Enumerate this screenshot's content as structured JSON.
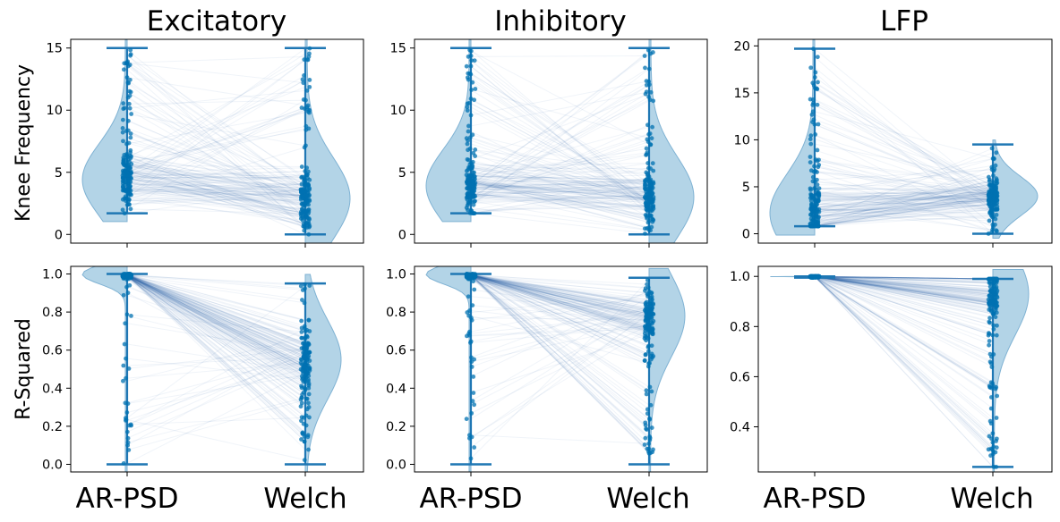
{
  "figure": {
    "columns": [
      "Excitatory",
      "Inhibitory",
      "LFP"
    ],
    "rows": [
      "Knee Frequency",
      "R-Squared"
    ],
    "categories": [
      "AR-PSD",
      "Welch"
    ],
    "colors": {
      "point": "#0072b2",
      "violin": "#a6cde3",
      "violin_edge": "#7fb2d3",
      "whisker": "#1f77b4",
      "line": "#2a5db0"
    }
  },
  "chart_data": [
    {
      "type": "violin",
      "column": "Excitatory",
      "ylabel": "Knee Frequency",
      "categories": [
        "AR-PSD",
        "Welch"
      ],
      "ylim": [
        -0.7,
        15.7
      ],
      "yticks": [
        0,
        5,
        10,
        15
      ],
      "series": [
        {
          "name": "AR-PSD",
          "min": 1.7,
          "max": 15.0,
          "median": 4.3,
          "density_peak": 4.4
        },
        {
          "name": "Welch",
          "min": 0.0,
          "max": 15.0,
          "median": 3.2,
          "density_peak": 2.9
        }
      ]
    },
    {
      "type": "violin",
      "column": "Inhibitory",
      "ylabel": "",
      "categories": [
        "AR-PSD",
        "Welch"
      ],
      "ylim": [
        -0.7,
        15.7
      ],
      "yticks": [
        0,
        5,
        10,
        15
      ],
      "series": [
        {
          "name": "AR-PSD",
          "min": 1.7,
          "max": 15.0,
          "median": 4.0,
          "density_peak": 3.9
        },
        {
          "name": "Welch",
          "min": 0.0,
          "max": 15.0,
          "median": 3.0,
          "density_peak": 3.0
        }
      ]
    },
    {
      "type": "violin",
      "column": "LFP",
      "ylabel": "",
      "categories": [
        "AR-PSD",
        "Welch"
      ],
      "ylim": [
        -1.0,
        20.7
      ],
      "yticks": [
        0,
        5,
        10,
        15,
        20
      ],
      "series": [
        {
          "name": "AR-PSD",
          "min": 0.8,
          "max": 19.7,
          "median": 2.5,
          "density_peak": 2.2
        },
        {
          "name": "Welch",
          "min": 0.0,
          "max": 9.5,
          "median": 3.8,
          "density_peak": 4.0
        }
      ]
    },
    {
      "type": "violin",
      "column": "Excitatory",
      "ylabel": "R-Squared",
      "categories": [
        "AR-PSD",
        "Welch"
      ],
      "ylim": [
        -0.04,
        1.04
      ],
      "yticks": [
        0.0,
        0.2,
        0.4,
        0.6,
        0.8,
        1.0
      ],
      "series": [
        {
          "name": "AR-PSD",
          "min": 0.0,
          "max": 1.0,
          "median": 0.997,
          "density_peak": 0.998
        },
        {
          "name": "Welch",
          "min": 0.0,
          "max": 0.95,
          "median": 0.45,
          "density_peak": 0.55
        }
      ]
    },
    {
      "type": "violin",
      "column": "Inhibitory",
      "ylabel": "",
      "categories": [
        "AR-PSD",
        "Welch"
      ],
      "ylim": [
        -0.04,
        1.04
      ],
      "yticks": [
        0.0,
        0.2,
        0.4,
        0.6,
        0.8,
        1.0
      ],
      "series": [
        {
          "name": "AR-PSD",
          "min": 0.0,
          "max": 1.0,
          "median": 0.997,
          "density_peak": 0.998
        },
        {
          "name": "Welch",
          "min": 0.0,
          "max": 0.98,
          "median": 0.6,
          "density_peak": 0.78
        }
      ]
    },
    {
      "type": "violin",
      "column": "LFP",
      "ylabel": "",
      "categories": [
        "AR-PSD",
        "Welch"
      ],
      "ylim": [
        0.22,
        1.04
      ],
      "yticks": [
        0.4,
        0.6,
        0.8,
        1.0
      ],
      "series": [
        {
          "name": "AR-PSD",
          "min": 0.995,
          "max": 1.0,
          "median": 0.999,
          "density_peak": 0.999
        },
        {
          "name": "Welch",
          "min": 0.24,
          "max": 0.99,
          "median": 0.91,
          "density_peak": 0.93
        }
      ]
    }
  ]
}
